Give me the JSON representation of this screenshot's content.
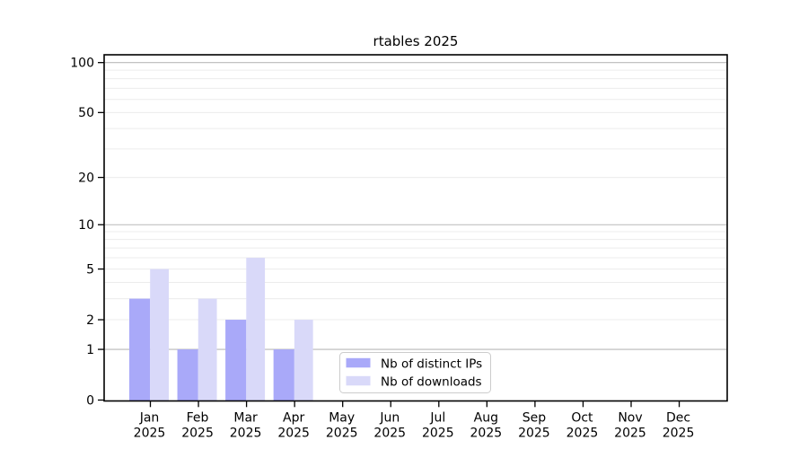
{
  "chart_data": {
    "type": "bar",
    "title": "rtables 2025",
    "xlabel": "",
    "ylabel": "",
    "categories": [
      {
        "month": "Jan",
        "year": "2025"
      },
      {
        "month": "Feb",
        "year": "2025"
      },
      {
        "month": "Mar",
        "year": "2025"
      },
      {
        "month": "Apr",
        "year": "2025"
      },
      {
        "month": "May",
        "year": "2025"
      },
      {
        "month": "Jun",
        "year": "2025"
      },
      {
        "month": "Jul",
        "year": "2025"
      },
      {
        "month": "Aug",
        "year": "2025"
      },
      {
        "month": "Sep",
        "year": "2025"
      },
      {
        "month": "Oct",
        "year": "2025"
      },
      {
        "month": "Nov",
        "year": "2025"
      },
      {
        "month": "Dec",
        "year": "2025"
      }
    ],
    "series": [
      {
        "name": "Nb of distinct IPs",
        "color": "#a9a9f9",
        "values": [
          3,
          1,
          2,
          1,
          0,
          0,
          0,
          0,
          0,
          0,
          0,
          0
        ]
      },
      {
        "name": "Nb of downloads",
        "color": "#d9d9f9",
        "values": [
          5,
          3,
          6,
          2,
          0,
          0,
          0,
          0,
          0,
          0,
          0,
          0
        ]
      }
    ],
    "y_axis": {
      "scale": "log10(1+x)",
      "tick_values": [
        0,
        1,
        2,
        5,
        10,
        20,
        50,
        100
      ],
      "major_gridlines": [
        1,
        10,
        100
      ],
      "minor_gridlines": [
        2,
        3,
        4,
        5,
        6,
        7,
        8,
        9,
        20,
        30,
        40,
        50,
        60,
        70,
        80,
        90
      ],
      "ylim": [
        0,
        110
      ]
    },
    "legend": {
      "position": "bottom-center",
      "entries": [
        "Nb of distinct IPs",
        "Nb of downloads"
      ]
    },
    "grid": true
  },
  "colors": {
    "background": "#ffffff",
    "axis": "#000000",
    "major_grid": "#b9b9b9",
    "minor_grid": "#ececec",
    "legend_border": "#cccccc",
    "legend_fill": "#ffffff",
    "text": "#000000"
  }
}
